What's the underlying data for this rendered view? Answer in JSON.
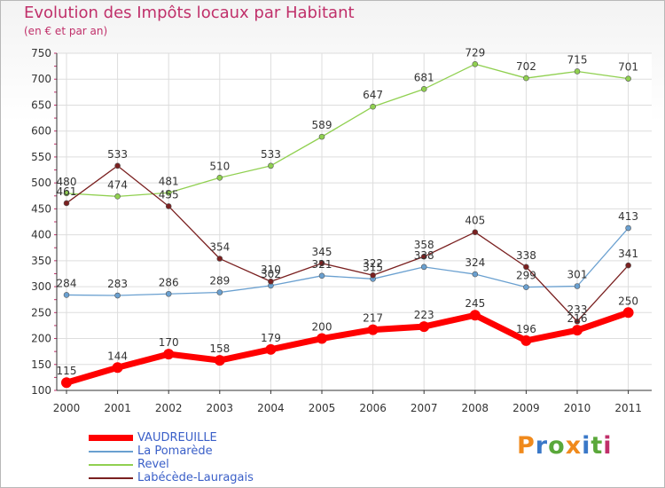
{
  "chart_data": {
    "type": "line",
    "title": "Evolution des Impôts locaux par Habitant",
    "subtitle": "(en € et par an)",
    "categories": [
      "2000",
      "2001",
      "2002",
      "2003",
      "2004",
      "2005",
      "2006",
      "2007",
      "2008",
      "2009",
      "2010",
      "2011"
    ],
    "ylim": [
      100,
      750
    ],
    "yticks": [
      100,
      150,
      200,
      250,
      300,
      350,
      400,
      450,
      500,
      550,
      600,
      650,
      700,
      750
    ],
    "grid": true,
    "legend_position": "bottom-left",
    "series": [
      {
        "name": "VAUDREUILLE",
        "color": "#ff0000",
        "values": [
          115,
          144,
          170,
          158,
          179,
          200,
          217,
          223,
          245,
          196,
          216,
          250
        ]
      },
      {
        "name": "La Pomarède",
        "color": "#6aa0d0",
        "values": [
          284,
          283,
          286,
          289,
          302,
          321,
          315,
          338,
          324,
          299,
          301,
          413
        ]
      },
      {
        "name": "Revel",
        "color": "#90d050",
        "values": [
          480,
          474,
          481,
          510,
          533,
          589,
          647,
          681,
          729,
          702,
          715,
          701
        ]
      },
      {
        "name": "Labécède-Lauragais",
        "color": "#7a2020",
        "values": [
          461,
          533,
          455,
          354,
          310,
          345,
          322,
          358,
          405,
          338,
          233,
          341
        ]
      }
    ]
  },
  "logo": {
    "letters": [
      "P",
      "r",
      "o",
      "x",
      "i",
      "t",
      "i"
    ]
  }
}
